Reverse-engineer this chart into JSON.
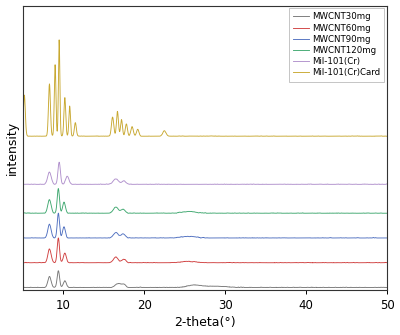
{
  "title": "",
  "xlabel": "2-theta(°)",
  "ylabel": "intensity",
  "xlim": [
    5,
    50
  ],
  "legend_labels": [
    "MWCNT30mg",
    "MWCNT60mg",
    "MWCNT90mg",
    "MWCNT120mg",
    "Mil-101(Cr)",
    "Mil-101(Cr)Card"
  ],
  "colors": [
    "#777777",
    "#d04040",
    "#5070c0",
    "#40a870",
    "#b090cc",
    "#c8a830"
  ],
  "offsets": [
    0,
    0.18,
    0.36,
    0.54,
    0.75,
    1.1
  ],
  "background_color": "#ffffff",
  "figsize": [
    4.0,
    3.35
  ],
  "dpi": 100
}
